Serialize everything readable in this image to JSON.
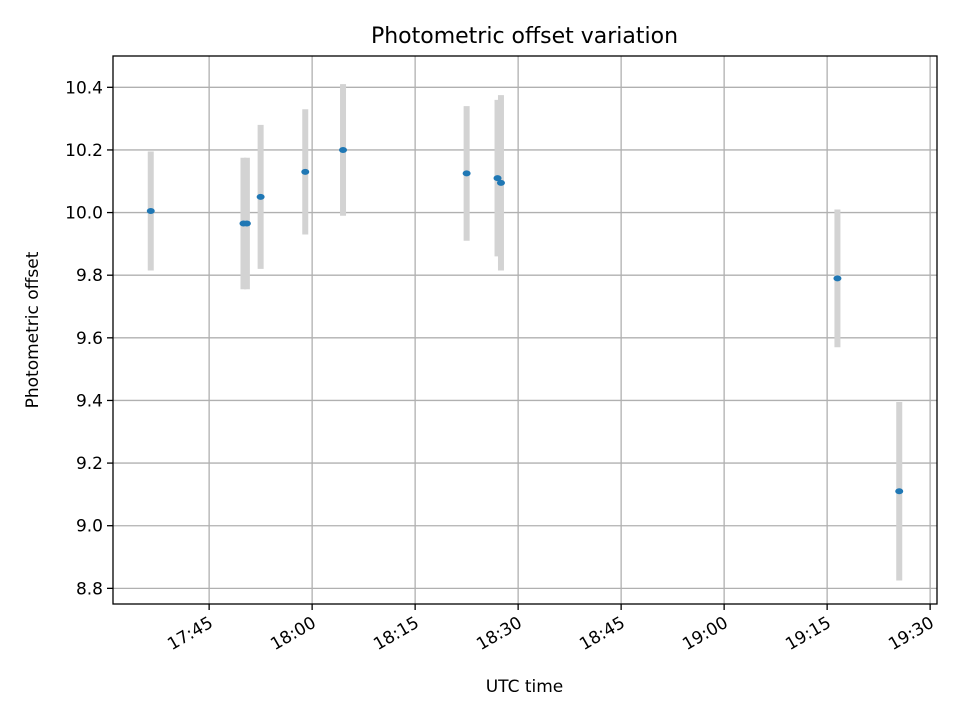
{
  "chart_data": {
    "type": "scatter",
    "title": "Photometric offset variation",
    "xlabel": "UTC time",
    "ylabel": "Photometric offset",
    "grid": true,
    "xlim": [
      "17:31",
      "19:31"
    ],
    "ylim": [
      8.75,
      10.5
    ],
    "x_ticks": [
      "17:45",
      "18:00",
      "18:15",
      "18:30",
      "18:45",
      "19:00",
      "19:15",
      "19:30"
    ],
    "y_ticks": [
      8.8,
      9.0,
      9.2,
      9.4,
      9.6,
      9.8,
      10.0,
      10.2,
      10.4
    ],
    "colors": {
      "point": "#1f77b4",
      "errorbar": "#d3d3d3",
      "grid": "#b0b0b0"
    },
    "points": [
      {
        "time": "17:36.5",
        "y": 10.005,
        "err": 0.19
      },
      {
        "time": "17:50.0",
        "y": 9.965,
        "err": 0.21
      },
      {
        "time": "17:50.5",
        "y": 9.965,
        "err": 0.21
      },
      {
        "time": "17:52.5",
        "y": 10.05,
        "err": 0.23
      },
      {
        "time": "17:59.0",
        "y": 10.13,
        "err": 0.2
      },
      {
        "time": "18:04.5",
        "y": 10.2,
        "err": 0.21
      },
      {
        "time": "18:22.5",
        "y": 10.125,
        "err": 0.215
      },
      {
        "time": "18:27.0",
        "y": 10.11,
        "err": 0.25
      },
      {
        "time": "18:27.5",
        "y": 10.095,
        "err": 0.28
      },
      {
        "time": "19:16.5",
        "y": 9.79,
        "err": 0.22
      },
      {
        "time": "19:25.5",
        "y": 9.11,
        "err": 0.285
      }
    ]
  }
}
